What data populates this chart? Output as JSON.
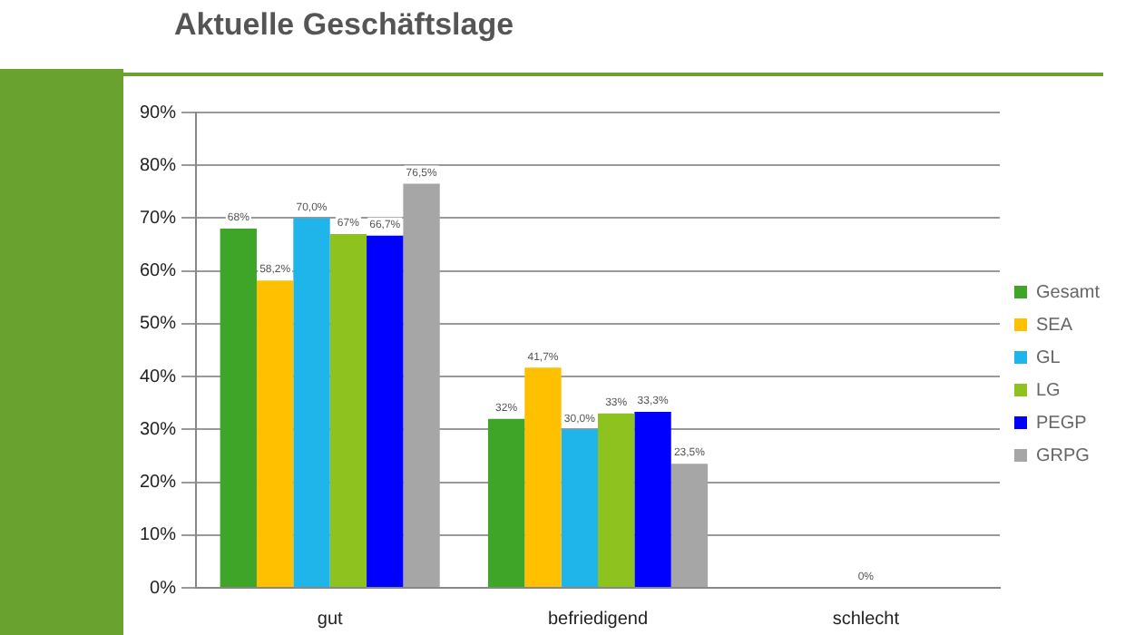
{
  "chart_data": {
    "type": "bar",
    "title": "Aktuelle Geschäftslage",
    "categories": [
      "gut",
      "befriedigend",
      "schlecht"
    ],
    "series": [
      {
        "name": "Gesamt",
        "color": "#3fa528",
        "values": [
          68,
          32,
          0
        ],
        "value_labels": [
          "68%",
          "32%",
          null
        ]
      },
      {
        "name": "SEA",
        "color": "#ffc000",
        "values": [
          58.2,
          41.7,
          0
        ],
        "value_labels": [
          "58,2%",
          "41,7%",
          null
        ]
      },
      {
        "name": "GL",
        "color": "#1fb4ea",
        "values": [
          70.0,
          30.0,
          0
        ],
        "value_labels": [
          "70,0%",
          "30,0%",
          null
        ]
      },
      {
        "name": "LG",
        "color": "#8dc21f",
        "values": [
          67,
          33,
          0
        ],
        "value_labels": [
          "67%",
          "33%",
          null
        ]
      },
      {
        "name": "PEGP",
        "color": "#0000ff",
        "values": [
          66.7,
          33.3,
          0
        ],
        "value_labels": [
          "66,7%",
          "33,3%",
          null
        ]
      },
      {
        "name": "GRPG",
        "color": "#a6a6a6",
        "values": [
          76.5,
          23.5,
          0
        ],
        "value_labels": [
          "76,5%",
          "23,5%",
          null
        ]
      }
    ],
    "ylim": [
      0,
      90
    ],
    "yticks": [
      {
        "value": 0,
        "label": "0%"
      },
      {
        "value": 10,
        "label": "10%"
      },
      {
        "value": 20,
        "label": "20%"
      },
      {
        "value": 30,
        "label": "30%"
      },
      {
        "value": 40,
        "label": "40%"
      },
      {
        "value": 50,
        "label": "50%"
      },
      {
        "value": 60,
        "label": "60%"
      },
      {
        "value": 70,
        "label": "70%"
      },
      {
        "value": 80,
        "label": "80%"
      },
      {
        "value": 90,
        "label": "90%"
      }
    ],
    "annotations": [
      {
        "text": "0%",
        "x": "schlecht",
        "y": 0
      }
    ],
    "grid": "y",
    "legend": "right"
  }
}
